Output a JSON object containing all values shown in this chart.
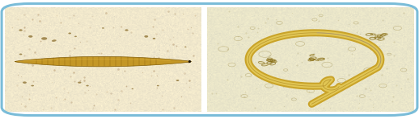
{
  "figsize": [
    5.18,
    1.48
  ],
  "dpi": 100,
  "border_color": "#7abcd8",
  "border_linewidth": 2.2,
  "left_bg": "#f0e8c8",
  "right_bg": "#e8e4c4",
  "fig_bg": "#ffffff",
  "worm_left_color": "#b8880a",
  "worm_left_edge": "#7a5500",
  "worm_right_color": "#d4b840",
  "worm_right_edge": "#8a6c10",
  "worm_right_inner": "#e8d070"
}
